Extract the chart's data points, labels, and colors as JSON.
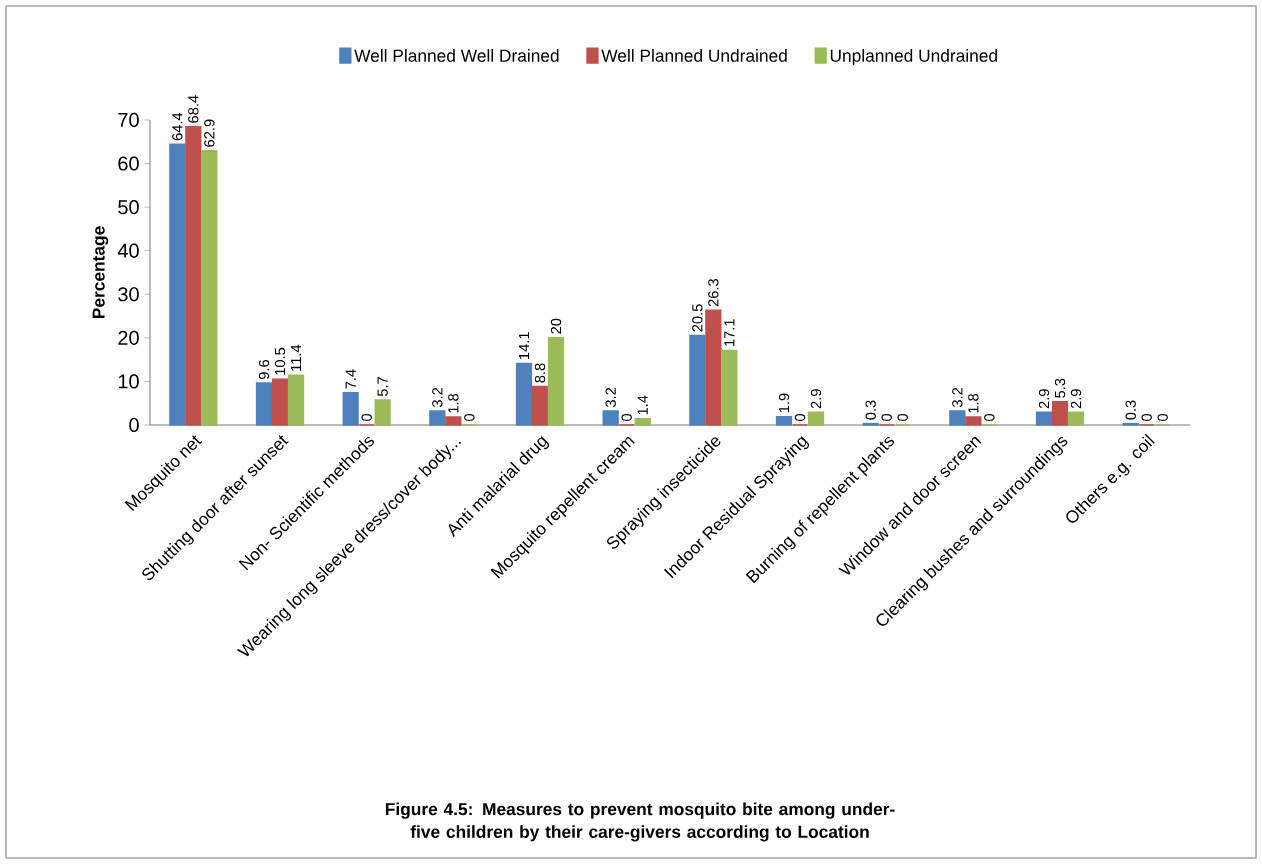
{
  "chart_data": {
    "type": "bar",
    "title": "Figure 4.5:  Measures to prevent mosquito bite among under-five children by their care-givers according to Location",
    "ylabel": "Percentage",
    "categories": [
      "Mosquito net",
      "Shutting door after sunset",
      "Non- Scientific methods",
      "Wearing long sleeve dress/cover body...",
      "Anti malarial drug",
      "Mosquito repellent cream",
      "Spraying insecticide",
      "Indoor Residual Spraying",
      "Burning of repellent plants",
      "Window and door screen",
      "Clearing bushes and surroundings",
      "Others e.g. coil"
    ],
    "series": [
      {
        "name": "Well Planned Well Drained",
        "color": "#4f81bd",
        "values": [
          64.4,
          9.6,
          7.4,
          3.2,
          14.1,
          3.2,
          20.5,
          1.9,
          0.3,
          3.2,
          2.9,
          0.3
        ]
      },
      {
        "name": "Well Planned Undrained",
        "color": "#c0504d",
        "values": [
          68.4,
          10.5,
          0,
          1.8,
          8.8,
          0,
          26.3,
          0,
          0,
          1.8,
          5.3,
          0
        ]
      },
      {
        "name": "Unplanned Undrained",
        "color": "#9bbb59",
        "values": [
          62.9,
          11.4,
          5.7,
          0,
          20,
          1.4,
          17.1,
          2.9,
          0,
          0,
          2.9,
          0
        ]
      }
    ],
    "ylim": [
      0,
      70
    ],
    "yticks": [
      0,
      10,
      20,
      30,
      40,
      50,
      60,
      70
    ],
    "data_labels": true,
    "legend": "top"
  }
}
